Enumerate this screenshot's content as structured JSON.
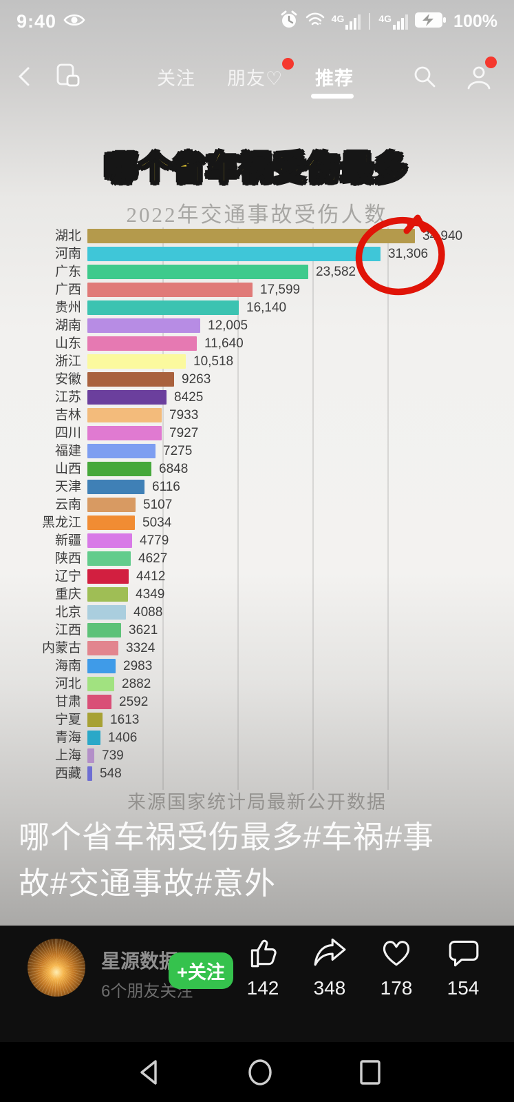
{
  "status_bar": {
    "time": "9:40",
    "battery_percent": "100%",
    "network_label": "4G",
    "icons": [
      "eye-icon",
      "alarm-icon",
      "wifi-icon",
      "signal-4g-icon",
      "signal-4g-icon",
      "battery-charging-icon"
    ]
  },
  "tab_bar": {
    "tabs": [
      {
        "label": "关注"
      },
      {
        "label": "朋友♡",
        "badge": true
      },
      {
        "label": "推荐",
        "active": true
      }
    ],
    "icons": [
      "back-icon",
      "floating-window-icon",
      "search-icon",
      "profile-icon"
    ]
  },
  "video": {
    "headline": "哪个省车祸受伤最多",
    "source_note": "来源国家统计局最新公开数据",
    "caption": "哪个省车祸受伤最多#车祸#事故#交通事故#意外"
  },
  "chart_data": {
    "type": "bar",
    "orientation": "horizontal",
    "title": "2022年交通事故受伤人数",
    "categories": [
      "湖北",
      "河南",
      "广东",
      "广西",
      "贵州",
      "湖南",
      "山东",
      "浙江",
      "安徽",
      "江苏",
      "吉林",
      "四川",
      "福建",
      "山西",
      "天津",
      "云南",
      "黑龙江",
      "新疆",
      "陕西",
      "辽宁",
      "重庆",
      "北京",
      "江西",
      "内蒙古",
      "海南",
      "河北",
      "甘肃",
      "宁夏",
      "青海",
      "上海",
      "西藏"
    ],
    "values": [
      34940,
      31306,
      23582,
      17599,
      16140,
      12005,
      11640,
      10518,
      9263,
      8425,
      7933,
      7927,
      7275,
      6848,
      6116,
      5107,
      5034,
      4779,
      4627,
      4412,
      4349,
      4088,
      3621,
      3324,
      2983,
      2882,
      2592,
      1613,
      1406,
      739,
      548
    ],
    "value_labels": [
      "34,940",
      "31,306",
      "23,582",
      "17,599",
      "16,140",
      "12,005",
      "11,640",
      "10,518",
      "9263",
      "8425",
      "7933",
      "7927",
      "7275",
      "6848",
      "6116",
      "5107",
      "5034",
      "4779",
      "4627",
      "4412",
      "4349",
      "4088",
      "3621",
      "3324",
      "2983",
      "2882",
      "2592",
      "1613",
      "1406",
      "739",
      "548"
    ],
    "bar_colors": [
      "#b49a4c",
      "#3fc6d8",
      "#3eca8c",
      "#e07a78",
      "#3cc3b1",
      "#b78ce4",
      "#e679b2",
      "#fbf99e",
      "#a9613d",
      "#6b3f9d",
      "#f3bb7b",
      "#e07ad1",
      "#7d9ef1",
      "#46a83b",
      "#3f80b6",
      "#d89a62",
      "#f18c33",
      "#d87ae7",
      "#62cc8c",
      "#d21f40",
      "#9fbe55",
      "#aacede",
      "#5dc278",
      "#e2858e",
      "#3f9be8",
      "#a1e280",
      "#d94f77",
      "#a7a133",
      "#2aa8c8",
      "#b38fc8",
      "#6e6ed3"
    ],
    "x_max": 34940,
    "gridlines_at": [
      8000,
      16000,
      24000,
      32000
    ],
    "grid": true,
    "annotation": {
      "type": "hand-drawn-circle",
      "target_value": "31,306",
      "target_category": "河南",
      "color": "#e01408"
    }
  },
  "footer": {
    "username": "星源数据",
    "friends_note": "6个朋友关注",
    "follow_label": "+关注",
    "actions": [
      {
        "name": "like",
        "count": "142"
      },
      {
        "name": "share",
        "count": "348"
      },
      {
        "name": "favorite",
        "count": "178"
      },
      {
        "name": "comment",
        "count": "154"
      }
    ]
  },
  "android_nav": [
    "back",
    "home",
    "recents"
  ]
}
